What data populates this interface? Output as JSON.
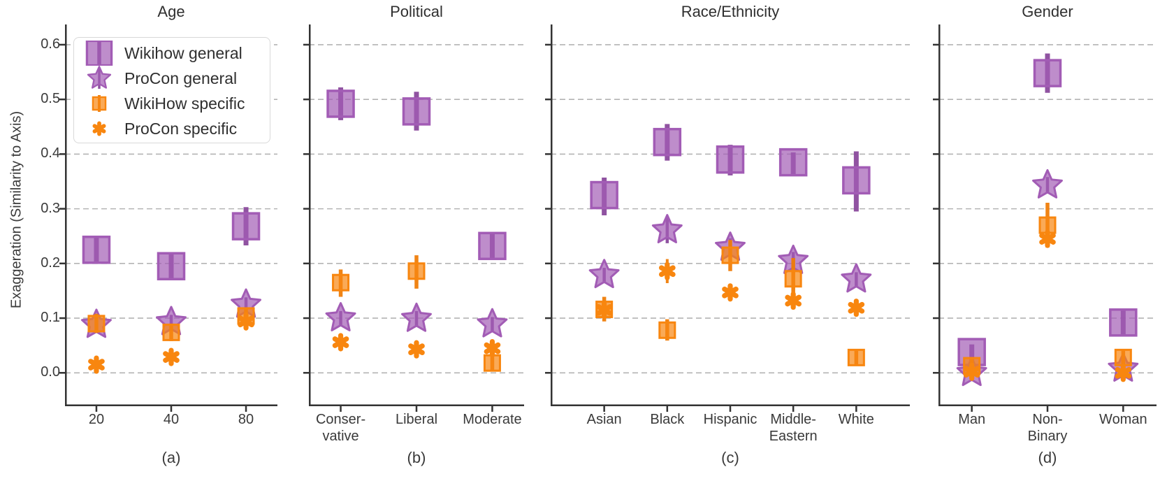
{
  "chart_data": {
    "type": "scatter",
    "ylabel": "Exaggeration (Similarity to Axis)",
    "ylim": [
      -0.061,
      0.637
    ],
    "yticks": [
      "0.0",
      "0.1",
      "0.2",
      "0.3",
      "0.4",
      "0.5",
      "0.6"
    ],
    "grid": "dashed-horizontal",
    "grid_color": "#b4b4b4",
    "axis_color": "#333333",
    "legend_position": "upper-left-of-first-panel",
    "series": [
      {
        "name": "Wikihow general",
        "marker": "square-large",
        "color": "#a25cb5",
        "error_color": "#8a4a9c"
      },
      {
        "name": "ProCon general",
        "marker": "star",
        "color": "#a25cb5",
        "error_color": "#8a4a9c"
      },
      {
        "name": "WikiHow specific",
        "marker": "square-small",
        "color": "#f8860f",
        "error_color": "#ef7d08"
      },
      {
        "name": "ProCon specific",
        "marker": "asterisk",
        "color": "#f8860f",
        "error_color": "#ef7d08"
      }
    ],
    "panels": [
      {
        "title": "Age",
        "label": "(a)",
        "categories": [
          "20",
          "40",
          "80"
        ],
        "series": [
          {
            "name": "Wikihow general",
            "points": [
              [
                0.225,
                0.2,
                0.247
              ],
              [
                0.195,
                0.17,
                0.218
              ],
              [
                0.268,
                0.233,
                0.303
              ]
            ]
          },
          {
            "name": "ProCon general",
            "points": [
              [
                0.088,
                0.074,
                0.101
              ],
              [
                0.093,
                0.08,
                0.106
              ],
              [
                0.125,
                0.112,
                0.138
              ]
            ]
          },
          {
            "name": "WikiHow specific",
            "points": [
              [
                0.09,
                0.073,
                0.108
              ],
              [
                0.074,
                0.058,
                0.09
              ],
              [
                0.104,
                0.088,
                0.118
              ]
            ]
          },
          {
            "name": "ProCon specific",
            "points": [
              [
                0.015,
                0.007,
                0.023
              ],
              [
                0.029,
                0.021,
                0.037
              ],
              [
                0.094,
                0.083,
                0.104
              ]
            ]
          }
        ]
      },
      {
        "title": "Political",
        "label": "(b)",
        "categories": [
          "Conser-\nvative",
          "Liberal",
          "Moderate"
        ],
        "series": [
          {
            "name": "Wikihow general",
            "points": [
              [
                0.492,
                0.462,
                0.522
              ],
              [
                0.478,
                0.443,
                0.514
              ],
              [
                0.232,
                0.208,
                0.255
              ]
            ]
          },
          {
            "name": "ProCon general",
            "points": [
              [
                0.1,
                0.086,
                0.113
              ],
              [
                0.099,
                0.085,
                0.113
              ],
              [
                0.089,
                0.077,
                0.102
              ]
            ]
          },
          {
            "name": "WikiHow specific",
            "points": [
              [
                0.165,
                0.139,
                0.189
              ],
              [
                0.186,
                0.154,
                0.215
              ],
              [
                0.018,
                0.004,
                0.032
              ]
            ]
          },
          {
            "name": "ProCon specific",
            "points": [
              [
                0.056,
                0.048,
                0.064
              ],
              [
                0.043,
                0.035,
                0.051
              ],
              [
                0.045,
                0.037,
                0.053
              ]
            ]
          }
        ]
      },
      {
        "title": "Race/Ethnicity",
        "label": "(c)",
        "categories": [
          "Asian",
          "Black",
          "Hispanic",
          "Middle-\nEastern",
          "White"
        ],
        "series": [
          {
            "name": "Wikihow general",
            "points": [
              [
                0.325,
                0.288,
                0.357
              ],
              [
                0.422,
                0.388,
                0.455
              ],
              [
                0.39,
                0.361,
                0.417
              ],
              [
                0.385,
                0.363,
                0.403
              ],
              [
                0.352,
                0.295,
                0.405
              ]
            ]
          },
          {
            "name": "ProCon general",
            "points": [
              [
                0.179,
                0.165,
                0.192
              ],
              [
                0.261,
                0.237,
                0.284
              ],
              [
                0.229,
                0.213,
                0.246
              ],
              [
                0.205,
                0.189,
                0.221
              ],
              [
                0.171,
                0.158,
                0.184
              ]
            ]
          },
          {
            "name": "WikiHow specific",
            "points": [
              [
                0.116,
                0.094,
                0.139
              ],
              [
                0.078,
                0.059,
                0.098
              ],
              [
                0.215,
                0.186,
                0.243
              ],
              [
                0.172,
                0.135,
                0.21
              ],
              [
                0.028,
                0.013,
                0.042
              ]
            ]
          },
          {
            "name": "ProCon specific",
            "points": [
              [
                0.115,
                0.104,
                0.126
              ],
              [
                0.186,
                0.164,
                0.208
              ],
              [
                0.147,
                0.135,
                0.159
              ],
              [
                0.132,
                0.12,
                0.144
              ],
              [
                0.119,
                0.108,
                0.13
              ]
            ]
          }
        ]
      },
      {
        "title": "Gender",
        "label": "(d)",
        "categories": [
          "Man",
          "Non-\nBinary",
          "Woman"
        ],
        "series": [
          {
            "name": "Wikihow general",
            "points": [
              [
                0.038,
                0.009,
                0.052
              ],
              [
                0.548,
                0.512,
                0.584
              ],
              [
                0.092,
                0.068,
                0.116
              ]
            ]
          },
          {
            "name": "ProCon general",
            "points": [
              [
                0.0,
                -0.01,
                0.01
              ],
              [
                0.343,
                0.328,
                0.358
              ],
              [
                0.008,
                -0.002,
                0.018
              ]
            ]
          },
          {
            "name": "WikiHow specific",
            "points": [
              [
                0.013,
                0.0,
                0.027
              ],
              [
                0.27,
                0.229,
                0.311
              ],
              [
                0.028,
                0.013,
                0.042
              ]
            ]
          },
          {
            "name": "ProCon specific",
            "points": [
              [
                0.002,
                -0.005,
                0.009
              ],
              [
                0.245,
                0.233,
                0.257
              ],
              [
                0.0,
                -0.006,
                0.006
              ]
            ]
          }
        ]
      }
    ]
  }
}
